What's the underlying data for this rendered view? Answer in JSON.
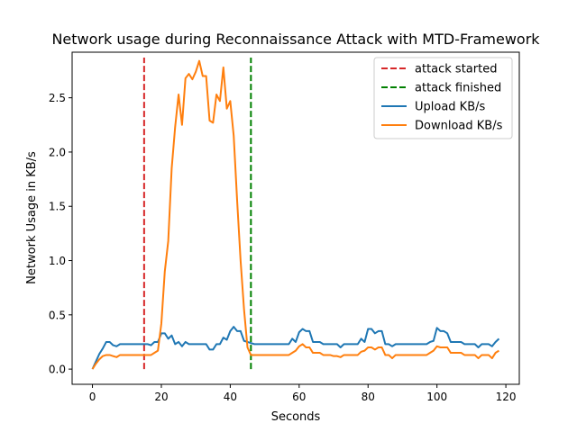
{
  "chart_data": {
    "type": "line",
    "title": "Network usage during Reconnaissance Attack with MTD-Framework",
    "xlabel": "Seconds",
    "ylabel": "Network Usage in KB/s",
    "xlim": [
      -5.9,
      123.9
    ],
    "ylim": [
      -0.14,
      2.92
    ],
    "xticks": [
      0,
      20,
      40,
      60,
      80,
      100,
      120
    ],
    "yticks": [
      0.0,
      0.5,
      1.0,
      1.5,
      2.0,
      2.5
    ],
    "ytick_labels": [
      "0.0",
      "0.5",
      "1.0",
      "1.5",
      "2.0",
      "2.5"
    ],
    "grid": false,
    "legend_position": "top-right",
    "vlines": [
      {
        "name": "attack started",
        "x": 15,
        "y0": 0,
        "y1": 2.87,
        "color": "#d62728",
        "dash": "dashed"
      },
      {
        "name": "attack finished",
        "x": 46,
        "y0": 0,
        "y1": 2.87,
        "color": "#008000",
        "dash": "dashed"
      }
    ],
    "series": [
      {
        "name": "Upload KB/s",
        "color": "#1f77b4",
        "points": [
          [
            0,
            0.0
          ],
          [
            1,
            0.07
          ],
          [
            2,
            0.14
          ],
          [
            3,
            0.19
          ],
          [
            4,
            0.25
          ],
          [
            5,
            0.25
          ],
          [
            6,
            0.22
          ],
          [
            7,
            0.21
          ],
          [
            8,
            0.23
          ],
          [
            9,
            0.23
          ],
          [
            10,
            0.23
          ],
          [
            11,
            0.23
          ],
          [
            12,
            0.23
          ],
          [
            13,
            0.23
          ],
          [
            14,
            0.23
          ],
          [
            15,
            0.23
          ],
          [
            16,
            0.23
          ],
          [
            17,
            0.22
          ],
          [
            18,
            0.25
          ],
          [
            19,
            0.25
          ],
          [
            20,
            0.33
          ],
          [
            21,
            0.33
          ],
          [
            22,
            0.28
          ],
          [
            23,
            0.31
          ],
          [
            24,
            0.23
          ],
          [
            25,
            0.25
          ],
          [
            26,
            0.21
          ],
          [
            27,
            0.25
          ],
          [
            28,
            0.23
          ],
          [
            29,
            0.23
          ],
          [
            30,
            0.23
          ],
          [
            31,
            0.23
          ],
          [
            32,
            0.23
          ],
          [
            33,
            0.23
          ],
          [
            34,
            0.18
          ],
          [
            35,
            0.18
          ],
          [
            36,
            0.23
          ],
          [
            37,
            0.23
          ],
          [
            38,
            0.29
          ],
          [
            39,
            0.27
          ],
          [
            40,
            0.35
          ],
          [
            41,
            0.39
          ],
          [
            42,
            0.35
          ],
          [
            43,
            0.35
          ],
          [
            44,
            0.26
          ],
          [
            45,
            0.25
          ],
          [
            46,
            0.24
          ],
          [
            47,
            0.23
          ],
          [
            48,
            0.23
          ],
          [
            49,
            0.23
          ],
          [
            50,
            0.23
          ],
          [
            51,
            0.23
          ],
          [
            52,
            0.23
          ],
          [
            53,
            0.23
          ],
          [
            54,
            0.23
          ],
          [
            55,
            0.23
          ],
          [
            56,
            0.23
          ],
          [
            57,
            0.23
          ],
          [
            58,
            0.28
          ],
          [
            59,
            0.25
          ],
          [
            60,
            0.34
          ],
          [
            61,
            0.37
          ],
          [
            62,
            0.35
          ],
          [
            63,
            0.35
          ],
          [
            64,
            0.25
          ],
          [
            65,
            0.25
          ],
          [
            66,
            0.25
          ],
          [
            67,
            0.23
          ],
          [
            68,
            0.23
          ],
          [
            69,
            0.23
          ],
          [
            70,
            0.23
          ],
          [
            71,
            0.23
          ],
          [
            72,
            0.2
          ],
          [
            73,
            0.23
          ],
          [
            74,
            0.23
          ],
          [
            75,
            0.23
          ],
          [
            76,
            0.23
          ],
          [
            77,
            0.23
          ],
          [
            78,
            0.28
          ],
          [
            79,
            0.25
          ],
          [
            80,
            0.37
          ],
          [
            81,
            0.37
          ],
          [
            82,
            0.33
          ],
          [
            83,
            0.35
          ],
          [
            84,
            0.35
          ],
          [
            85,
            0.23
          ],
          [
            86,
            0.23
          ],
          [
            87,
            0.21
          ],
          [
            88,
            0.23
          ],
          [
            89,
            0.23
          ],
          [
            90,
            0.23
          ],
          [
            91,
            0.23
          ],
          [
            92,
            0.23
          ],
          [
            93,
            0.23
          ],
          [
            94,
            0.23
          ],
          [
            95,
            0.23
          ],
          [
            96,
            0.23
          ],
          [
            97,
            0.23
          ],
          [
            98,
            0.25
          ],
          [
            99,
            0.26
          ],
          [
            100,
            0.38
          ],
          [
            101,
            0.35
          ],
          [
            102,
            0.35
          ],
          [
            103,
            0.33
          ],
          [
            104,
            0.25
          ],
          [
            105,
            0.25
          ],
          [
            106,
            0.25
          ],
          [
            107,
            0.25
          ],
          [
            108,
            0.23
          ],
          [
            109,
            0.23
          ],
          [
            110,
            0.23
          ],
          [
            111,
            0.23
          ],
          [
            112,
            0.2
          ],
          [
            113,
            0.23
          ],
          [
            114,
            0.23
          ],
          [
            115,
            0.23
          ],
          [
            116,
            0.21
          ],
          [
            117,
            0.25
          ],
          [
            118,
            0.28
          ]
        ]
      },
      {
        "name": "Download KB/s",
        "color": "#ff7f0e",
        "points": [
          [
            0,
            0.0
          ],
          [
            1,
            0.05
          ],
          [
            2,
            0.09
          ],
          [
            3,
            0.12
          ],
          [
            4,
            0.13
          ],
          [
            5,
            0.13
          ],
          [
            6,
            0.12
          ],
          [
            7,
            0.11
          ],
          [
            8,
            0.13
          ],
          [
            9,
            0.13
          ],
          [
            10,
            0.13
          ],
          [
            11,
            0.13
          ],
          [
            12,
            0.13
          ],
          [
            13,
            0.13
          ],
          [
            14,
            0.13
          ],
          [
            15,
            0.13
          ],
          [
            16,
            0.13
          ],
          [
            17,
            0.13
          ],
          [
            18,
            0.15
          ],
          [
            19,
            0.17
          ],
          [
            20,
            0.42
          ],
          [
            21,
            0.9
          ],
          [
            22,
            1.18
          ],
          [
            23,
            1.85
          ],
          [
            24,
            2.23
          ],
          [
            25,
            2.53
          ],
          [
            26,
            2.25
          ],
          [
            27,
            2.68
          ],
          [
            28,
            2.72
          ],
          [
            29,
            2.67
          ],
          [
            30,
            2.74
          ],
          [
            31,
            2.84
          ],
          [
            32,
            2.7
          ],
          [
            33,
            2.7
          ],
          [
            34,
            2.29
          ],
          [
            35,
            2.27
          ],
          [
            36,
            2.53
          ],
          [
            37,
            2.47
          ],
          [
            38,
            2.78
          ],
          [
            39,
            2.4
          ],
          [
            40,
            2.47
          ],
          [
            41,
            2.15
          ],
          [
            42,
            1.55
          ],
          [
            43,
            1.0
          ],
          [
            44,
            0.55
          ],
          [
            45,
            0.2
          ],
          [
            46,
            0.13
          ],
          [
            47,
            0.13
          ],
          [
            48,
            0.13
          ],
          [
            49,
            0.13
          ],
          [
            50,
            0.13
          ],
          [
            51,
            0.13
          ],
          [
            52,
            0.13
          ],
          [
            53,
            0.13
          ],
          [
            54,
            0.13
          ],
          [
            55,
            0.13
          ],
          [
            56,
            0.13
          ],
          [
            57,
            0.13
          ],
          [
            58,
            0.15
          ],
          [
            59,
            0.17
          ],
          [
            60,
            0.21
          ],
          [
            61,
            0.23
          ],
          [
            62,
            0.2
          ],
          [
            63,
            0.2
          ],
          [
            64,
            0.15
          ],
          [
            65,
            0.15
          ],
          [
            66,
            0.15
          ],
          [
            67,
            0.13
          ],
          [
            68,
            0.13
          ],
          [
            69,
            0.13
          ],
          [
            70,
            0.12
          ],
          [
            71,
            0.12
          ],
          [
            72,
            0.11
          ],
          [
            73,
            0.13
          ],
          [
            74,
            0.13
          ],
          [
            75,
            0.13
          ],
          [
            76,
            0.13
          ],
          [
            77,
            0.13
          ],
          [
            78,
            0.16
          ],
          [
            79,
            0.17
          ],
          [
            80,
            0.2
          ],
          [
            81,
            0.2
          ],
          [
            82,
            0.18
          ],
          [
            83,
            0.2
          ],
          [
            84,
            0.2
          ],
          [
            85,
            0.13
          ],
          [
            86,
            0.13
          ],
          [
            87,
            0.1
          ],
          [
            88,
            0.13
          ],
          [
            89,
            0.13
          ],
          [
            90,
            0.13
          ],
          [
            91,
            0.13
          ],
          [
            92,
            0.13
          ],
          [
            93,
            0.13
          ],
          [
            94,
            0.13
          ],
          [
            95,
            0.13
          ],
          [
            96,
            0.13
          ],
          [
            97,
            0.13
          ],
          [
            98,
            0.15
          ],
          [
            99,
            0.17
          ],
          [
            100,
            0.21
          ],
          [
            101,
            0.2
          ],
          [
            102,
            0.2
          ],
          [
            103,
            0.2
          ],
          [
            104,
            0.15
          ],
          [
            105,
            0.15
          ],
          [
            106,
            0.15
          ],
          [
            107,
            0.15
          ],
          [
            108,
            0.13
          ],
          [
            109,
            0.13
          ],
          [
            110,
            0.13
          ],
          [
            111,
            0.13
          ],
          [
            112,
            0.1
          ],
          [
            113,
            0.13
          ],
          [
            114,
            0.13
          ],
          [
            115,
            0.13
          ],
          [
            116,
            0.1
          ],
          [
            117,
            0.15
          ],
          [
            118,
            0.17
          ]
        ]
      }
    ],
    "legend": [
      "attack started",
      "attack finished",
      "Upload KB/s",
      "Download KB/s"
    ]
  }
}
